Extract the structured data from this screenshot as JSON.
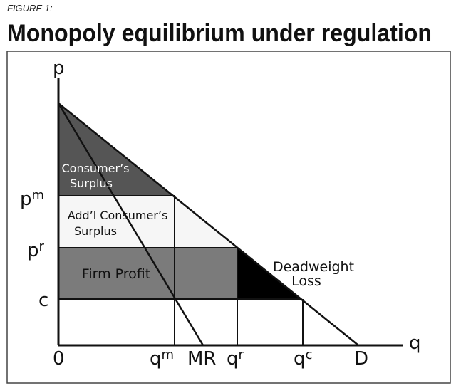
{
  "header": {
    "figure_label": "FIGURE 1:",
    "title": "Monopoly equilibrium under regulation"
  },
  "axes": {
    "y": "p",
    "x": "q"
  },
  "regions": {
    "consumer_surplus": [
      "Consumer’s",
      "Surplus"
    ],
    "addl_consumer_surplus": [
      "Add’l Consumer’s",
      "Surplus"
    ],
    "firm_profit": "Firm Profit",
    "deadweight_loss": [
      "Deadweight",
      "Loss"
    ]
  },
  "price_labels": [
    {
      "base": "p",
      "sup": "m"
    },
    {
      "base": "p",
      "sup": "r"
    },
    {
      "base": "c"
    }
  ],
  "quantity_labels": [
    {
      "base": "0"
    },
    {
      "base": "q",
      "sup": "m"
    },
    {
      "base": "MR"
    },
    {
      "base": "q",
      "sup": "r"
    },
    {
      "base": "q",
      "sup": "c"
    },
    {
      "base": "D"
    }
  ]
}
